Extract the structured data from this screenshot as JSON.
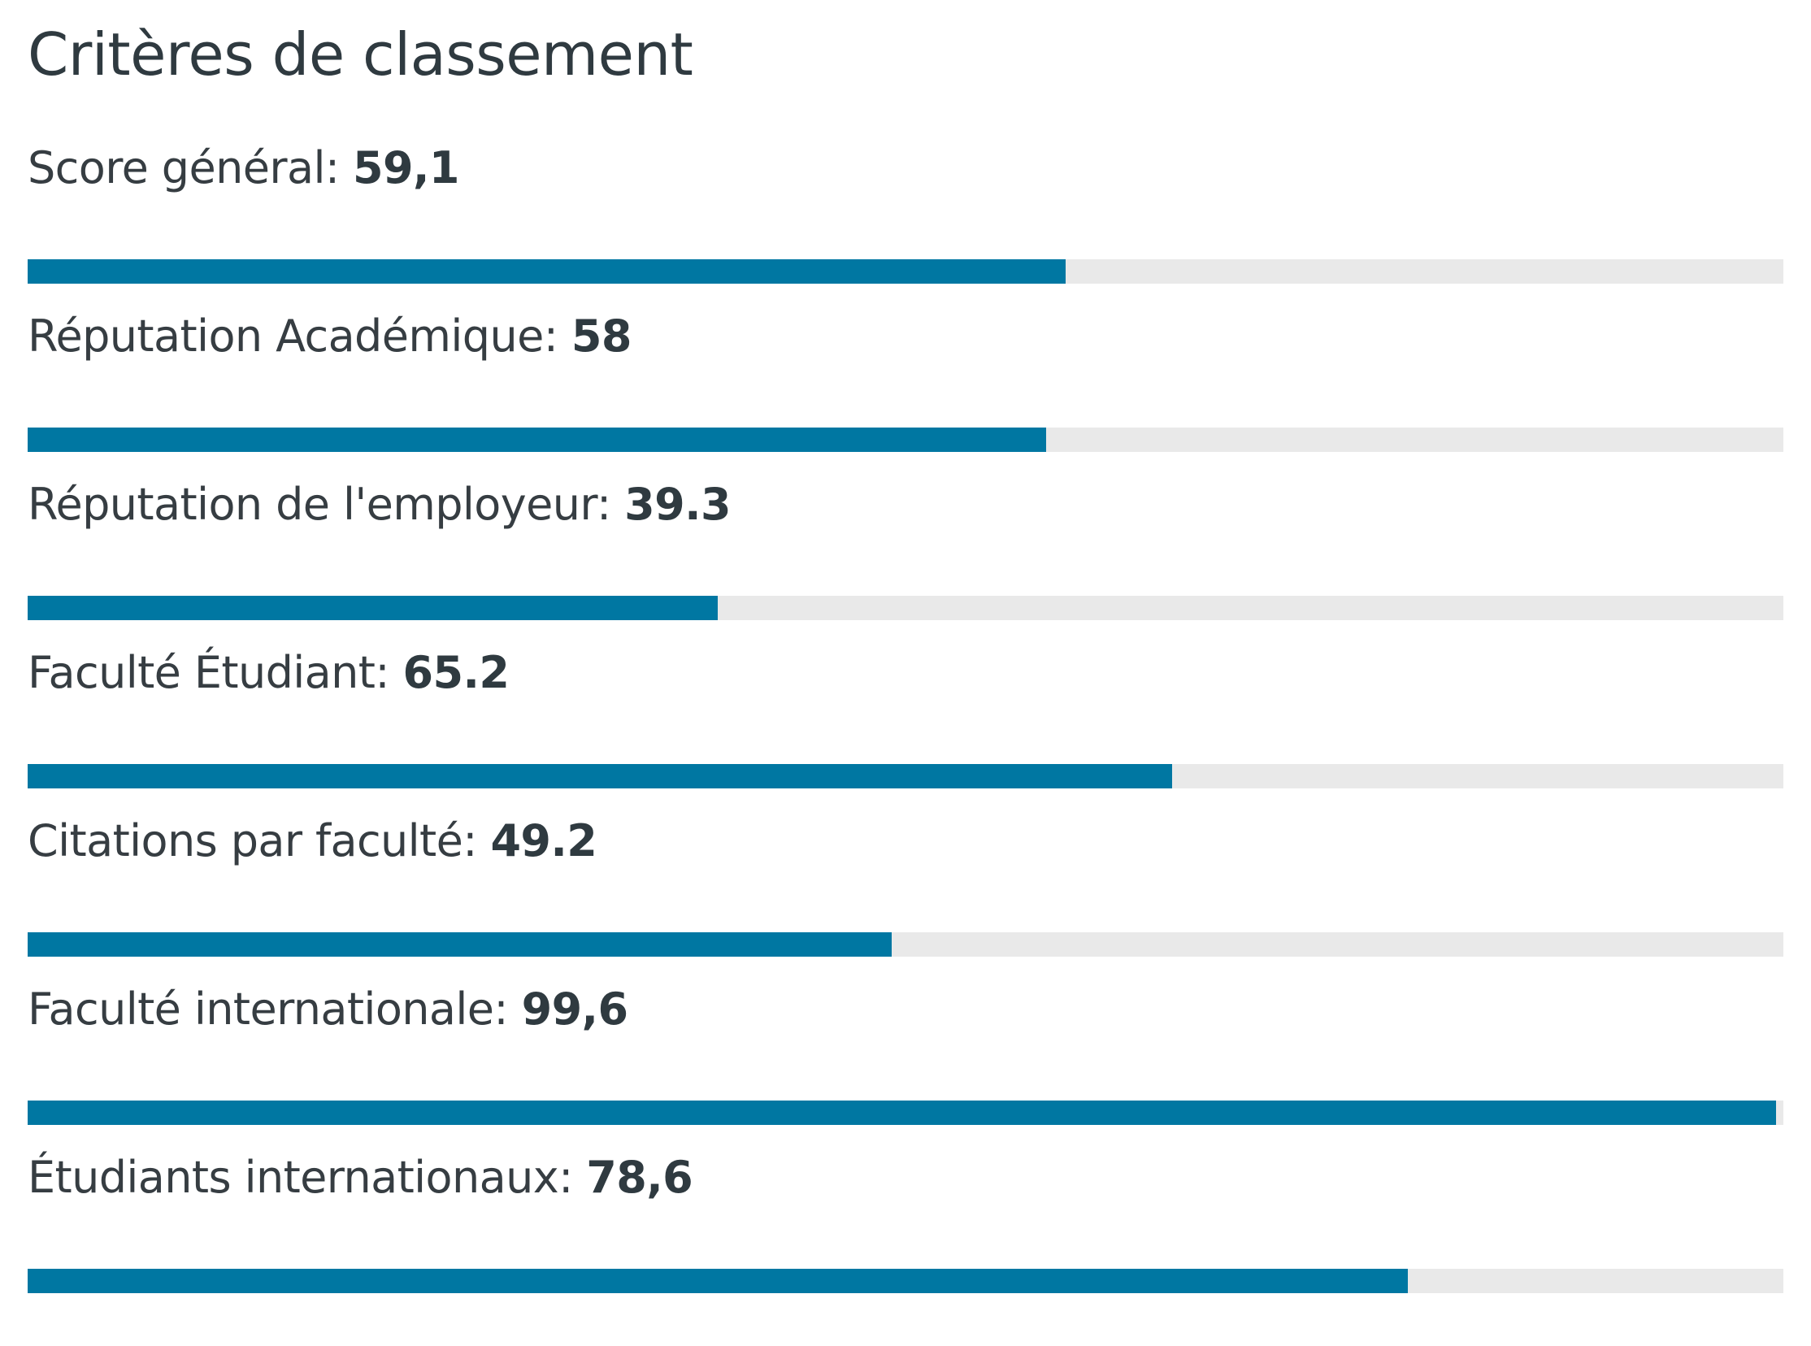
{
  "title": "Critères de classement",
  "colors": {
    "bar_fill": "#0077a2",
    "bar_track": "#e9e9e9",
    "text": "#333a40"
  },
  "criteria": [
    {
      "label": "Score général",
      "value": "59,1",
      "fill_percent": 59.1
    },
    {
      "label": "Réputation Académique",
      "value": "58",
      "fill_percent": 58
    },
    {
      "label": "Réputation de l'employeur",
      "value": "39.3",
      "fill_percent": 39.3
    },
    {
      "label": "Faculté Étudiant",
      "value": "65.2",
      "fill_percent": 65.2
    },
    {
      "label": "Citations par faculté",
      "value": "49.2",
      "fill_percent": 49.2
    },
    {
      "label": "Faculté internationale",
      "value": "99,6",
      "fill_percent": 99.6
    },
    {
      "label": "Étudiants internationaux",
      "value": "78,6",
      "fill_percent": 78.6
    }
  ]
}
